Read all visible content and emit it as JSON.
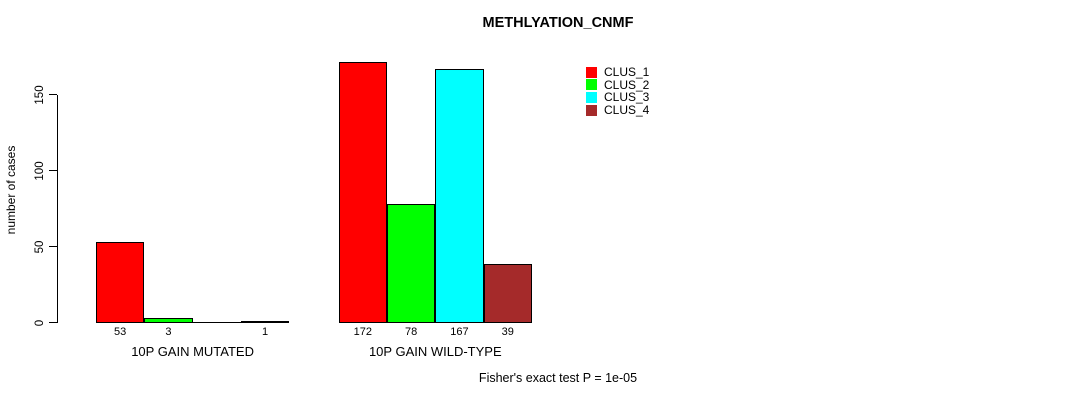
{
  "title": "METHLYATION_CNMF",
  "footnote": "Fisher's exact test P = 1e-05",
  "chart_data": {
    "type": "bar",
    "title": "METHLYATION_CNMF",
    "xlabel": "",
    "ylabel": "number of cases",
    "yticks": [
      0,
      50,
      100,
      150
    ],
    "ylim": [
      0,
      172
    ],
    "grid": false,
    "legend_position": "top-right",
    "bar_border_color": "#000000",
    "categories": [
      "10P GAIN MUTATED",
      "10P GAIN WILD-TYPE"
    ],
    "series": [
      {
        "name": "CLUS_1",
        "color": "#ff0000",
        "values": [
          53,
          172
        ]
      },
      {
        "name": "CLUS_2",
        "color": "#00ff00",
        "values": [
          3,
          78
        ]
      },
      {
        "name": "CLUS_3",
        "color": "#00ffff",
        "values": [
          0,
          167
        ]
      },
      {
        "name": "CLUS_4",
        "color": "#a52a2a",
        "values": [
          1,
          39
        ]
      }
    ],
    "bar_labels": [
      [
        "53",
        "3",
        "",
        "1"
      ],
      [
        "172",
        "78",
        "167",
        "39"
      ]
    ],
    "annotation": "Fisher's exact test P = 1e-05"
  }
}
